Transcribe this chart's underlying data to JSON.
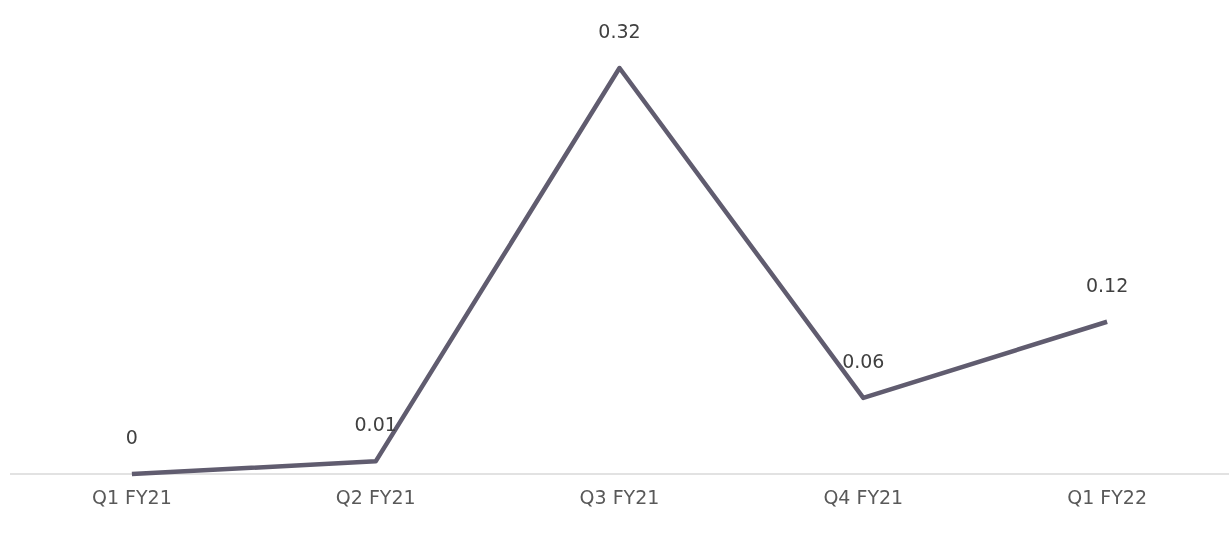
{
  "chart_data": {
    "type": "line",
    "categories": [
      "Q1 FY21",
      "Q2 FY21",
      "Q3 FY21",
      "Q4 FY21",
      "Q1 FY22"
    ],
    "series": [
      {
        "color": "#605c6f",
        "values": [
          0,
          0.01,
          0.32,
          0.06,
          0.12
        ]
      }
    ],
    "data_labels": true,
    "marker": "none",
    "line_style": "solid"
  }
}
